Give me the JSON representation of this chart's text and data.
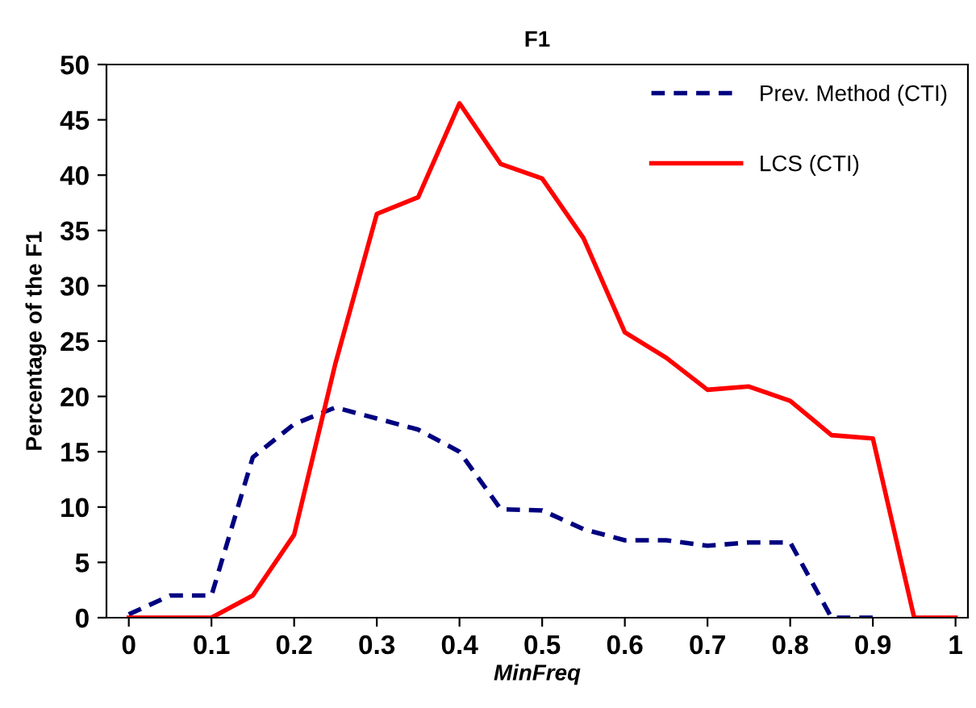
{
  "chart_data": {
    "type": "line",
    "title": "F1",
    "xlabel": "MinFreq",
    "ylabel": "Percentage of the F1",
    "xlim": [
      -0.027,
      1.015
    ],
    "xticks": [
      0,
      0.1,
      0.2,
      0.3,
      0.4,
      0.5,
      0.6,
      0.7,
      0.8,
      0.9,
      1
    ],
    "ylim": [
      0,
      50
    ],
    "yticks": [
      0,
      5,
      10,
      15,
      20,
      25,
      30,
      35,
      40,
      45,
      50
    ],
    "grid": false,
    "legend": "top right",
    "series": [
      {
        "name": "Prev. Method (CTI)",
        "color": "#000080",
        "line_style": "dashed",
        "x": [
          0,
          0.05,
          0.1,
          0.15,
          0.2,
          0.25,
          0.3,
          0.35,
          0.4,
          0.45,
          0.5,
          0.55,
          0.6,
          0.65,
          0.7,
          0.75,
          0.8,
          0.85,
          0.9
        ],
        "values": [
          0.3,
          2,
          2,
          14.5,
          17.5,
          19,
          18,
          17,
          15,
          9.8,
          9.7,
          8,
          7,
          7,
          6.5,
          6.8,
          6.8,
          0,
          0
        ]
      },
      {
        "name": "LCS (CTI)",
        "color": "#ff0000",
        "line_style": "solid",
        "x": [
          0,
          0.05,
          0.1,
          0.15,
          0.2,
          0.25,
          0.3,
          0.35,
          0.4,
          0.45,
          0.5,
          0.55,
          0.6,
          0.65,
          0.7,
          0.75,
          0.8,
          0.85,
          0.9,
          0.95,
          1
        ],
        "values": [
          0,
          0,
          0,
          2,
          7.5,
          23,
          36.5,
          38,
          46.5,
          41,
          39.7,
          34.3,
          25.8,
          23.5,
          20.6,
          20.9,
          19.6,
          16.5,
          16.2,
          0,
          0
        ]
      }
    ]
  }
}
